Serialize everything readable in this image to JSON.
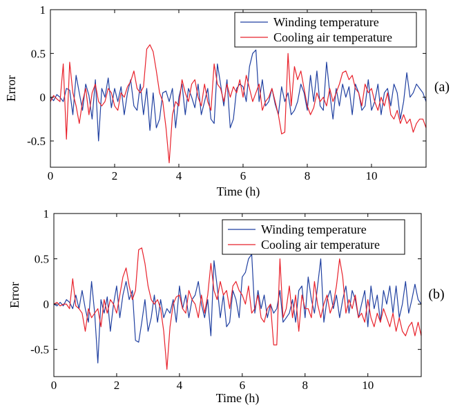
{
  "chart_data": [
    {
      "type": "line",
      "panel_label": "(a)",
      "xlabel": "Time (h)",
      "ylabel": "Error",
      "xlim": [
        0,
        11.7
      ],
      "ylim": [
        -0.8,
        1.0
      ],
      "xticks": [
        0,
        2,
        4,
        6,
        8,
        10
      ],
      "xtick_labels": [
        "0",
        "2",
        "4",
        "6",
        "8",
        "10"
      ],
      "yticks": [
        -0.5,
        0,
        0.5,
        1
      ],
      "ytick_labels": [
        "-0.5",
        "0",
        "0.5",
        "1"
      ],
      "grid": false,
      "legend_position": "top-right",
      "series": [
        {
          "name": "Winding temperature",
          "color": "#1f3fa0",
          "x": [
            0.0,
            0.1,
            0.2,
            0.3,
            0.4,
            0.5,
            0.6,
            0.7,
            0.8,
            0.9,
            1.0,
            1.1,
            1.2,
            1.3,
            1.4,
            1.5,
            1.6,
            1.7,
            1.8,
            1.9,
            2.0,
            2.1,
            2.2,
            2.3,
            2.4,
            2.5,
            2.6,
            2.7,
            2.8,
            2.9,
            3.0,
            3.1,
            3.2,
            3.3,
            3.4,
            3.5,
            3.6,
            3.7,
            3.8,
            3.9,
            4.0,
            4.1,
            4.2,
            4.3,
            4.4,
            4.5,
            4.6,
            4.7,
            4.8,
            4.9,
            5.0,
            5.1,
            5.2,
            5.3,
            5.4,
            5.5,
            5.6,
            5.7,
            5.8,
            5.9,
            6.0,
            6.1,
            6.2,
            6.3,
            6.4,
            6.5,
            6.6,
            6.7,
            6.8,
            6.9,
            7.0,
            7.1,
            7.2,
            7.3,
            7.4,
            7.5,
            7.6,
            7.7,
            7.8,
            7.9,
            8.0,
            8.1,
            8.2,
            8.3,
            8.4,
            8.5,
            8.6,
            8.7,
            8.8,
            8.9,
            9.0,
            9.1,
            9.2,
            9.3,
            9.4,
            9.5,
            9.6,
            9.7,
            9.8,
            9.9,
            10.0,
            10.1,
            10.2,
            10.3,
            10.4,
            10.5,
            10.6,
            10.7,
            10.8,
            10.9,
            11.0,
            11.1,
            11.2,
            11.3,
            11.4,
            11.5,
            11.6,
            11.7
          ],
          "y": [
            0.0,
            -0.04,
            0.03,
            0.0,
            -0.05,
            0.1,
            0.08,
            -0.2,
            0.25,
            0.05,
            -0.15,
            0.15,
            0.02,
            -0.25,
            0.2,
            -0.5,
            0.1,
            0.0,
            0.22,
            -0.12,
            0.1,
            -0.05,
            0.12,
            -0.2,
            0.05,
            0.2,
            -0.1,
            -0.15,
            0.15,
            -0.2,
            0.1,
            -0.38,
            0.05,
            -0.35,
            -0.25,
            0.05,
            0.07,
            -0.05,
            0.1,
            -0.35,
            0.0,
            0.15,
            -0.2,
            0.1,
            0.0,
            -0.12,
            0.15,
            -0.2,
            -0.05,
            0.1,
            -0.25,
            -0.3,
            0.38,
            0.15,
            -0.1,
            0.2,
            -0.35,
            -0.25,
            0.1,
            0.15,
            0.12,
            -0.05,
            0.35,
            0.5,
            0.54,
            -0.05,
            0.2,
            -0.1,
            -0.05,
            0.1,
            -0.08,
            -0.2,
            0.12,
            -0.05,
            0.05,
            -0.2,
            -0.15,
            -0.05,
            0.15,
            0.05,
            -0.15,
            0.25,
            -0.05,
            0.3,
            -0.1,
            -0.15,
            0.4,
            0.05,
            -0.25,
            0.1,
            -0.1,
            0.15,
            0.0,
            0.12,
            -0.2,
            0.15,
            0.05,
            -0.15,
            -0.1,
            0.2,
            -0.15,
            -0.05,
            0.15,
            -0.2,
            0.05,
            0.1,
            -0.1,
            0.15,
            0.05,
            -0.25,
            -0.05,
            0.28,
            0.0,
            0.05,
            0.15,
            0.1,
            0.05,
            -0.05
          ]
        },
        {
          "name": "Cooling air temperature",
          "color": "#e8202a",
          "x": [
            0.0,
            0.1,
            0.2,
            0.3,
            0.4,
            0.5,
            0.6,
            0.7,
            0.8,
            0.9,
            1.0,
            1.1,
            1.2,
            1.3,
            1.4,
            1.5,
            1.6,
            1.7,
            1.8,
            1.9,
            2.0,
            2.1,
            2.2,
            2.3,
            2.4,
            2.5,
            2.6,
            2.7,
            2.8,
            2.9,
            3.0,
            3.1,
            3.2,
            3.3,
            3.4,
            3.5,
            3.6,
            3.7,
            3.8,
            3.9,
            4.0,
            4.1,
            4.2,
            4.3,
            4.4,
            4.5,
            4.6,
            4.7,
            4.8,
            4.9,
            5.0,
            5.1,
            5.2,
            5.3,
            5.4,
            5.5,
            5.6,
            5.7,
            5.8,
            5.9,
            6.0,
            6.1,
            6.2,
            6.3,
            6.4,
            6.5,
            6.6,
            6.7,
            6.8,
            6.9,
            7.0,
            7.1,
            7.2,
            7.3,
            7.4,
            7.5,
            7.6,
            7.7,
            7.8,
            7.9,
            8.0,
            8.1,
            8.2,
            8.3,
            8.4,
            8.5,
            8.6,
            8.7,
            8.8,
            8.9,
            9.0,
            9.1,
            9.2,
            9.3,
            9.4,
            9.5,
            9.6,
            9.7,
            9.8,
            9.9,
            10.0,
            10.1,
            10.2,
            10.3,
            10.4,
            10.5,
            10.6,
            10.7,
            10.8,
            10.9,
            11.0,
            11.1,
            11.2,
            11.3,
            11.4,
            11.5,
            11.6,
            11.7
          ],
          "y": [
            -0.05,
            0.02,
            -0.02,
            -0.05,
            0.38,
            -0.48,
            0.4,
            0.05,
            -0.1,
            -0.3,
            -0.05,
            0.1,
            -0.2,
            0.05,
            0.15,
            -0.05,
            -0.1,
            -0.05,
            0.1,
            0.05,
            -0.1,
            -0.15,
            0.05,
            0.0,
            0.12,
            0.18,
            0.3,
            0.1,
            0.05,
            0.12,
            0.55,
            0.6,
            0.52,
            0.3,
            0.05,
            -0.05,
            -0.35,
            -0.75,
            -0.2,
            -0.05,
            -0.1,
            0.2,
            0.05,
            -0.05,
            0.15,
            0.2,
            0.0,
            -0.1,
            0.15,
            -0.05,
            -0.15,
            0.38,
            0.15,
            0.1,
            -0.05,
            0.15,
            0.0,
            0.12,
            0.05,
            0.2,
            0.0,
            0.25,
            0.1,
            -0.05,
            0.05,
            0.15,
            -0.15,
            -0.05,
            0.0,
            0.1,
            -0.05,
            -0.2,
            -0.42,
            -0.4,
            0.5,
            -0.1,
            0.35,
            0.2,
            0.3,
            0.1,
            -0.1,
            -0.2,
            -0.12,
            0.05,
            -0.05,
            0.0,
            -0.1,
            0.1,
            -0.05,
            0.05,
            0.15,
            0.28,
            0.3,
            0.2,
            0.25,
            0.1,
            0.05,
            -0.1,
            0.15,
            0.05,
            0.1,
            -0.05,
            -0.15,
            0.0,
            -0.1,
            0.05,
            -0.2,
            -0.25,
            -0.15,
            -0.3,
            -0.2,
            -0.3,
            -0.25,
            -0.4,
            -0.3,
            -0.25,
            -0.25,
            -0.35
          ]
        }
      ]
    },
    {
      "type": "line",
      "panel_label": "(b)",
      "xlabel": "Time (h)",
      "ylabel": "Error",
      "xlim": [
        0,
        11.7
      ],
      "ylim": [
        -0.8,
        1.0
      ],
      "xticks": [
        0,
        2,
        4,
        6,
        8,
        10
      ],
      "xtick_labels": [
        "0",
        "2",
        "4",
        "6",
        "8",
        "10"
      ],
      "yticks": [
        -0.5,
        0,
        0.5,
        1
      ],
      "ytick_labels": [
        "-0.5",
        "0",
        "0.5",
        "1"
      ],
      "grid": false,
      "legend_position": "top-right",
      "series": [
        {
          "name": "Winding temperature",
          "color": "#1f3fa0",
          "x": [
            0.0,
            0.1,
            0.2,
            0.3,
            0.4,
            0.5,
            0.6,
            0.7,
            0.8,
            0.9,
            1.0,
            1.1,
            1.2,
            1.3,
            1.4,
            1.5,
            1.6,
            1.7,
            1.8,
            1.9,
            2.0,
            2.1,
            2.2,
            2.3,
            2.4,
            2.5,
            2.6,
            2.7,
            2.8,
            2.9,
            3.0,
            3.1,
            3.2,
            3.3,
            3.4,
            3.5,
            3.6,
            3.7,
            3.8,
            3.9,
            4.0,
            4.1,
            4.2,
            4.3,
            4.4,
            4.5,
            4.6,
            4.7,
            4.8,
            4.9,
            5.0,
            5.1,
            5.2,
            5.3,
            5.4,
            5.5,
            5.6,
            5.7,
            5.8,
            5.9,
            6.0,
            6.1,
            6.2,
            6.3,
            6.4,
            6.5,
            6.6,
            6.7,
            6.8,
            6.9,
            7.0,
            7.1,
            7.2,
            7.3,
            7.4,
            7.5,
            7.6,
            7.7,
            7.8,
            7.9,
            8.0,
            8.1,
            8.2,
            8.3,
            8.4,
            8.5,
            8.6,
            8.7,
            8.8,
            8.9,
            9.0,
            9.1,
            9.2,
            9.3,
            9.4,
            9.5,
            9.6,
            9.7,
            9.8,
            9.9,
            10.0,
            10.1,
            10.2,
            10.3,
            10.4,
            10.5,
            10.6,
            10.7,
            10.8,
            10.9,
            11.0,
            11.1,
            11.2,
            11.3,
            11.4,
            11.5,
            11.6,
            11.7
          ],
          "y": [
            0.0,
            -0.02,
            0.02,
            -0.02,
            0.05,
            0.02,
            -0.05,
            0.1,
            -0.05,
            0.15,
            -0.05,
            -0.2,
            0.25,
            -0.1,
            -0.65,
            0.05,
            -0.1,
            0.08,
            -0.3,
            0.0,
            0.2,
            -0.15,
            0.1,
            0.25,
            0.05,
            0.15,
            -0.4,
            -0.42,
            -0.2,
            0.05,
            -0.3,
            -0.15,
            0.1,
            -0.2,
            0.05,
            -0.15,
            -0.05,
            -0.1,
            0.05,
            -0.2,
            0.2,
            -0.05,
            0.1,
            -0.15,
            0.05,
            0.1,
            0.25,
            0.0,
            -0.15,
            0.05,
            -0.35,
            0.48,
            0.2,
            -0.15,
            0.1,
            -0.25,
            -0.2,
            0.15,
            0.05,
            -0.15,
            0.3,
            0.35,
            0.5,
            0.55,
            -0.1,
            0.15,
            -0.05,
            0.1,
            -0.15,
            0.0,
            -0.1,
            -0.05,
            0.15,
            -0.2,
            -0.15,
            -0.1,
            0.05,
            -0.2,
            0.15,
            0.2,
            -0.15,
            0.3,
            0.05,
            -0.1,
            0.2,
            0.5,
            -0.2,
            0.05,
            0.15,
            -0.05,
            0.1,
            -0.15,
            0.05,
            0.2,
            -0.1,
            0.15,
            0.05,
            -0.15,
            0.0,
            0.15,
            -0.25,
            0.2,
            -0.05,
            0.1,
            -0.2,
            0.15,
            0.0,
            0.2,
            -0.1,
            0.2,
            -0.15,
            0.0,
            0.25,
            -0.1,
            0.05,
            0.22,
            0.05,
            0.0
          ]
        },
        {
          "name": "Cooling air temperature",
          "color": "#e8202a",
          "x": [
            0.0,
            0.1,
            0.2,
            0.3,
            0.4,
            0.5,
            0.6,
            0.7,
            0.8,
            0.9,
            1.0,
            1.1,
            1.2,
            1.3,
            1.4,
            1.5,
            1.6,
            1.7,
            1.8,
            1.9,
            2.0,
            2.1,
            2.2,
            2.3,
            2.4,
            2.5,
            2.6,
            2.7,
            2.8,
            2.9,
            3.0,
            3.1,
            3.2,
            3.3,
            3.4,
            3.5,
            3.6,
            3.7,
            3.8,
            3.9,
            4.0,
            4.1,
            4.2,
            4.3,
            4.4,
            4.5,
            4.6,
            4.7,
            4.8,
            4.9,
            5.0,
            5.1,
            5.2,
            5.3,
            5.4,
            5.5,
            5.6,
            5.7,
            5.8,
            5.9,
            6.0,
            6.1,
            6.2,
            6.3,
            6.4,
            6.5,
            6.6,
            6.7,
            6.8,
            6.9,
            7.0,
            7.1,
            7.2,
            7.3,
            7.4,
            7.5,
            7.6,
            7.7,
            7.8,
            7.9,
            8.0,
            8.1,
            8.2,
            8.3,
            8.4,
            8.5,
            8.6,
            8.7,
            8.8,
            8.9,
            9.0,
            9.1,
            9.2,
            9.3,
            9.4,
            9.5,
            9.6,
            9.7,
            9.8,
            9.9,
            10.0,
            10.1,
            10.2,
            10.3,
            10.4,
            10.5,
            10.6,
            10.7,
            10.8,
            10.9,
            11.0,
            11.1,
            11.2,
            11.3,
            11.4,
            11.5,
            11.6,
            11.7
          ],
          "y": [
            0.0,
            0.02,
            -0.02,
            0.0,
            0.0,
            -0.05,
            0.28,
            -0.02,
            -0.05,
            -0.1,
            -0.3,
            -0.05,
            -0.15,
            -0.1,
            -0.05,
            -0.25,
            0.05,
            -0.1,
            0.05,
            0.0,
            -0.1,
            0.1,
            0.3,
            0.4,
            0.2,
            0.05,
            0.15,
            0.6,
            0.62,
            0.45,
            0.2,
            0.05,
            0.0,
            0.05,
            -0.05,
            -0.3,
            -0.72,
            -0.25,
            0.0,
            0.08,
            0.1,
            -0.05,
            -0.1,
            0.15,
            0.05,
            0.0,
            -0.15,
            0.1,
            -0.1,
            0.1,
            0.45,
            0.15,
            0.05,
            0.25,
            0.1,
            0.15,
            -0.05,
            0.2,
            0.25,
            0.15,
            0.1,
            0.0,
            0.2,
            -0.1,
            -0.05,
            0.1,
            -0.15,
            -0.2,
            -0.05,
            0.0,
            -0.45,
            -0.45,
            0.5,
            -0.15,
            -0.05,
            0.2,
            -0.15,
            0.1,
            -0.3,
            0.1,
            -0.05,
            -0.05,
            -0.15,
            0.25,
            0.0,
            -0.15,
            0.0,
            0.1,
            -0.1,
            0.0,
            0.2,
            0.5,
            0.3,
            -0.1,
            0.05,
            -0.05,
            0.1,
            -0.15,
            -0.1,
            -0.2,
            0.05,
            -0.15,
            -0.25,
            -0.1,
            -0.2,
            -0.05,
            -0.15,
            -0.25,
            -0.1,
            -0.3,
            -0.15,
            -0.3,
            -0.35,
            -0.25,
            -0.2,
            -0.35,
            -0.2,
            -0.35
          ]
        }
      ]
    }
  ]
}
